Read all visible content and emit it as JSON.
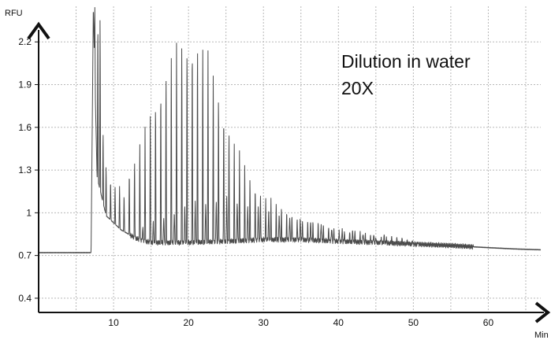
{
  "chart_data": {
    "type": "line",
    "title": "",
    "xlabel": "Min",
    "ylabel": "RFU",
    "xlim": [
      0,
      67
    ],
    "ylim": [
      0.3,
      2.45
    ],
    "grid": true,
    "x_ticks": [
      10,
      20,
      30,
      40,
      50,
      60
    ],
    "x_tick_labels": [
      "10",
      "20",
      "30",
      "40",
      "50",
      "60"
    ],
    "y_ticks": [
      0.4,
      0.7,
      1.0,
      1.3,
      1.6,
      1.9,
      2.2
    ],
    "y_tick_labels": [
      "0.4",
      "0.7",
      "1",
      "1.3",
      "1.6",
      "1.9",
      "2.2"
    ],
    "annotations": [
      "Dilution in water",
      "20X"
    ],
    "line_color": "#4a4a4a",
    "baseline": {
      "x": [
        0,
        7,
        7.3,
        7.8,
        9,
        11,
        13,
        15,
        20,
        25,
        30,
        35,
        40,
        45,
        50,
        55,
        60,
        64,
        67
      ],
      "y": [
        0.72,
        0.72,
        2.45,
        1.25,
        0.98,
        0.88,
        0.82,
        0.79,
        0.79,
        0.8,
        0.81,
        0.81,
        0.8,
        0.79,
        0.78,
        0.77,
        0.755,
        0.745,
        0.74
      ]
    },
    "peaks": {
      "x": [
        7.5,
        7.9,
        8.2,
        8.6,
        9.0,
        9.6,
        10.2,
        10.8,
        11.4,
        12.1,
        12.8,
        13.5,
        14.2,
        14.9,
        15.6,
        16.3,
        17.0,
        17.7,
        18.4,
        19.1,
        19.8,
        20.5,
        21.2,
        21.9,
        22.6,
        23.3,
        24.0,
        24.7,
        25.4,
        26.1,
        26.8,
        27.5,
        28.2,
        28.9,
        29.6,
        30.3,
        31.0,
        31.7,
        32.4,
        33.1,
        33.8,
        34.5,
        35.2,
        35.9,
        36.6,
        37.3,
        38.0,
        38.7,
        39.4,
        40.1,
        40.8,
        41.5,
        42.2,
        42.9,
        43.6,
        44.3,
        45.0,
        45.7,
        46.4,
        47.1,
        47.8,
        48.5,
        49.2,
        49.9,
        50.6
      ],
      "y": [
        2.45,
        2.45,
        2.45,
        1.6,
        1.35,
        1.25,
        1.2,
        1.2,
        1.15,
        1.32,
        1.42,
        1.52,
        1.62,
        1.75,
        1.85,
        1.95,
        2.05,
        2.15,
        2.22,
        2.28,
        2.3,
        2.3,
        2.28,
        2.22,
        2.15,
        2.05,
        1.92,
        1.78,
        1.65,
        1.52,
        1.42,
        1.35,
        1.28,
        1.22,
        1.17,
        1.12,
        1.1,
        1.07,
        1.05,
        1.02,
        1.0,
        0.98,
        0.96,
        0.95,
        0.94,
        0.93,
        0.92,
        0.91,
        0.9,
        0.89,
        0.88,
        0.87,
        0.87,
        0.86,
        0.85,
        0.85,
        0.84,
        0.84,
        0.83,
        0.83,
        0.82,
        0.82,
        0.81,
        0.81,
        0.8
      ]
    },
    "minor_peaks": {
      "x": [
        13.9,
        15.3,
        16.7,
        18.1,
        19.5,
        20.9,
        22.3,
        23.7,
        25.1,
        26.5,
        27.9,
        29.3,
        30.7,
        32.1,
        33.5,
        34.9,
        36.3,
        37.7,
        39.1,
        40.5,
        41.9,
        43.3,
        44.7,
        46.1
      ],
      "y": [
        0.9,
        0.94,
        0.98,
        1.02,
        1.06,
        1.08,
        1.09,
        1.1,
        1.1,
        1.09,
        1.07,
        1.05,
        1.02,
        1.0,
        0.98,
        0.96,
        0.94,
        0.92,
        0.9,
        0.88,
        0.87,
        0.86,
        0.85,
        0.84
      ]
    }
  }
}
